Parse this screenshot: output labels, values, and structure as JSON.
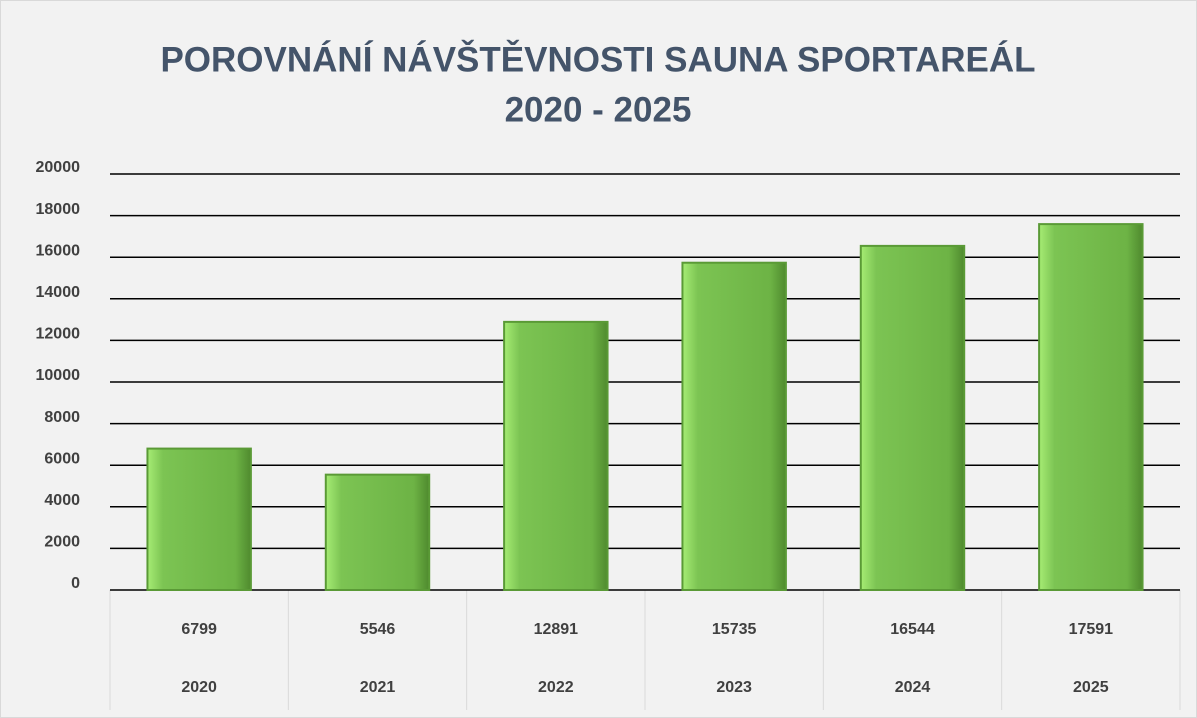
{
  "chart_data": {
    "type": "bar",
    "title": "POROVNÁNÍ NÁVŠTĚVNOSTI SAUNA SPORTAREÁL",
    "subtitle": "2020 - 2025",
    "categories": [
      "2020",
      "2021",
      "2022",
      "2023",
      "2024",
      "2025"
    ],
    "values": [
      6799,
      5546,
      12891,
      15735,
      16544,
      17591
    ],
    "color": "#70b84a",
    "ylim": [
      0,
      20000
    ],
    "yticks": [
      0,
      2000,
      4000,
      6000,
      8000,
      10000,
      12000,
      14000,
      16000,
      18000,
      20000
    ],
    "grid": true
  }
}
